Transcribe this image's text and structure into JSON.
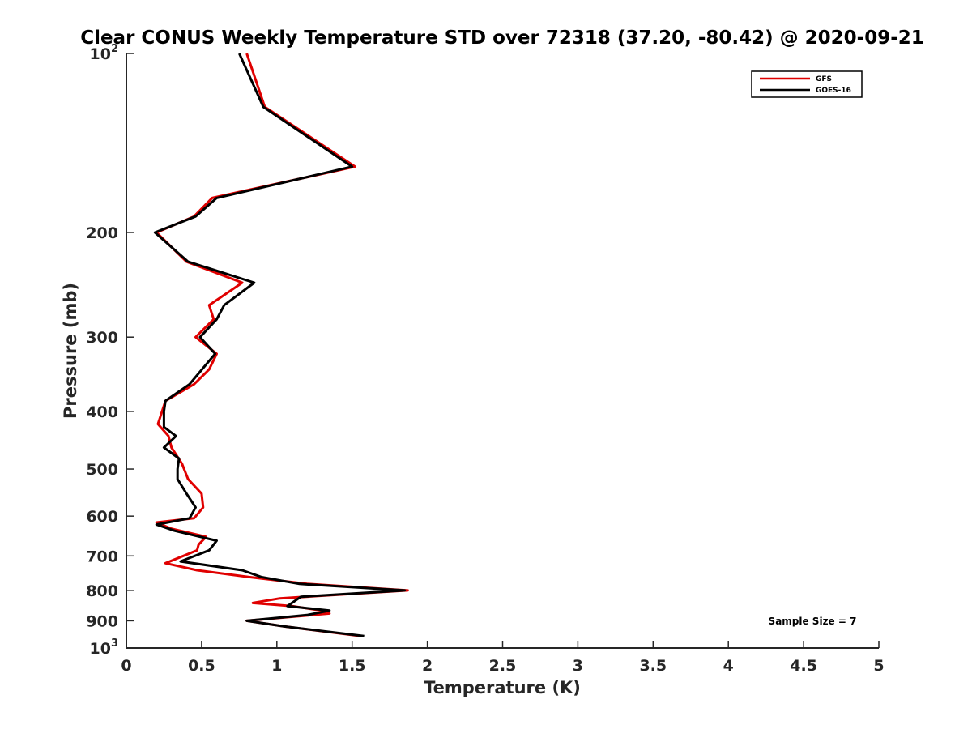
{
  "chart_data": {
    "type": "line",
    "title": "Clear CONUS Weekly Temperature STD over 72318 (37.20, -80.42) @ 2020-09-21",
    "xlabel": "Temperature (K)",
    "ylabel": "Pressure (mb)",
    "xlim": [
      0,
      5
    ],
    "ylim": [
      100,
      1000
    ],
    "y_scale": "log",
    "y_reversed": true,
    "grid": false,
    "legend_position": "top-right",
    "x_ticks": [
      "0",
      "0.5",
      "1",
      "1.5",
      "2",
      "2.5",
      "3",
      "3.5",
      "4",
      "4.5",
      "5"
    ],
    "y_ticks": [
      {
        "value": 100,
        "base": "10",
        "exp": "2"
      },
      {
        "value": 200,
        "label": "200"
      },
      {
        "value": 300,
        "label": "300"
      },
      {
        "value": 400,
        "label": "400"
      },
      {
        "value": 500,
        "label": "500"
      },
      {
        "value": 600,
        "label": "600"
      },
      {
        "value": 700,
        "label": "700"
      },
      {
        "value": 800,
        "label": "800"
      },
      {
        "value": 900,
        "label": "900"
      },
      {
        "value": 1000,
        "base": "10",
        "exp": "3"
      }
    ],
    "series": [
      {
        "name": "GFS",
        "color": "#e00000",
        "x": [
          0.8,
          0.92,
          1.52,
          0.57,
          0.45,
          0.2,
          0.4,
          0.77,
          0.55,
          0.58,
          0.46,
          0.6,
          0.55,
          0.45,
          0.26,
          0.21,
          0.28,
          0.3,
          0.37,
          0.41,
          0.5,
          0.51,
          0.45,
          0.2,
          0.3,
          0.53,
          0.48,
          0.47,
          0.26,
          0.47,
          0.82,
          1.2,
          1.87,
          1.02,
          0.84,
          1.1,
          1.3,
          1.35,
          0.8,
          1.05,
          1.56
        ],
        "y": [
          100,
          123,
          155,
          175,
          188,
          200,
          224,
          243,
          265,
          280,
          300,
          320,
          340,
          360,
          384,
          420,
          440,
          460,
          490,
          520,
          550,
          580,
          605,
          615,
          630,
          650,
          670,
          685,
          720,
          740,
          760,
          780,
          800,
          825,
          840,
          850,
          865,
          875,
          900,
          920,
          955
        ]
      },
      {
        "name": "GOES-16",
        "color": "#000000",
        "x": [
          0.75,
          0.91,
          1.5,
          0.6,
          0.46,
          0.19,
          0.41,
          0.85,
          0.65,
          0.6,
          0.49,
          0.59,
          0.42,
          0.26,
          0.25,
          0.25,
          0.33,
          0.25,
          0.35,
          0.34,
          0.34,
          0.4,
          0.46,
          0.42,
          0.2,
          0.32,
          0.6,
          0.55,
          0.36,
          0.77,
          0.9,
          1.15,
          1.85,
          1.16,
          1.1,
          1.07,
          1.35,
          1.2,
          0.8,
          1.05,
          1.58
        ],
        "y": [
          100,
          123,
          155,
          175,
          188,
          200,
          224,
          243,
          265,
          280,
          300,
          320,
          360,
          384,
          400,
          425,
          440,
          460,
          480,
          500,
          520,
          550,
          580,
          605,
          620,
          635,
          660,
          685,
          715,
          740,
          760,
          780,
          800,
          820,
          840,
          850,
          865,
          880,
          900,
          920,
          955
        ]
      }
    ],
    "annotations": [
      "Sample Size = 7"
    ]
  }
}
